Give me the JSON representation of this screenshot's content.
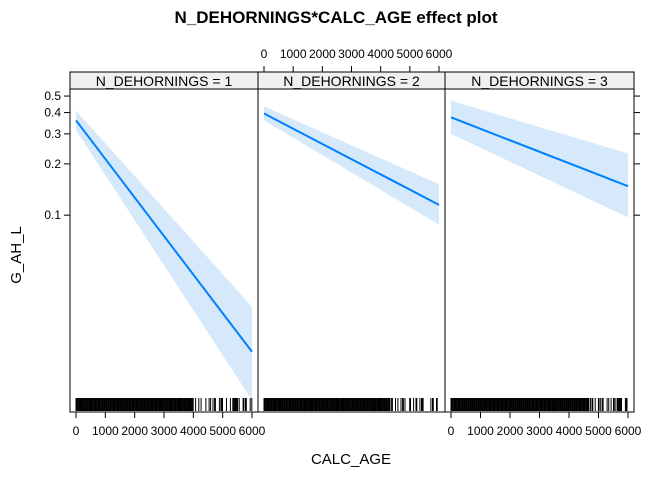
{
  "chart_data": {
    "type": "line",
    "title": "N_DEHORNINGS*CALC_AGE effect plot",
    "xlabel": "CALC_AGE",
    "ylabel": "G_AH_L",
    "xlim": [
      0,
      6000
    ],
    "x_ticks": [
      0,
      1000,
      2000,
      3000,
      4000,
      5000,
      6000
    ],
    "x_tick_labels": [
      "0",
      "1000",
      "2000",
      "3000",
      "4000",
      "5000",
      "6000"
    ],
    "y_scale": "log",
    "ylim": [
      0.007,
      0.55
    ],
    "y_ticks": [
      0.5,
      0.4,
      0.3,
      0.2,
      0.1
    ],
    "y_tick_labels": [
      "0.5",
      "0.4",
      "0.3",
      "0.2",
      "0.1"
    ],
    "panels": [
      {
        "strip": "N_DEHORNINGS = 1",
        "x": [
          0,
          6000
        ],
        "fit": [
          0.36,
          0.0158
        ],
        "lower": [
          0.315,
          0.0082
        ],
        "upper": [
          0.41,
          0.029
        ]
      },
      {
        "strip": "N_DEHORNINGS = 2",
        "x": [
          0,
          6000
        ],
        "fit": [
          0.395,
          0.115
        ],
        "lower": [
          0.36,
          0.088
        ],
        "upper": [
          0.435,
          0.152
        ]
      },
      {
        "strip": "N_DEHORNINGS = 3",
        "x": [
          0,
          6000
        ],
        "fit": [
          0.375,
          0.148
        ],
        "lower": [
          0.3,
          0.097
        ],
        "upper": [
          0.47,
          0.23
        ]
      }
    ],
    "colors": {
      "line": "#0080ff",
      "band": "#d6e9fb",
      "strip": "#f0f0f0",
      "frame": "#000000"
    }
  }
}
